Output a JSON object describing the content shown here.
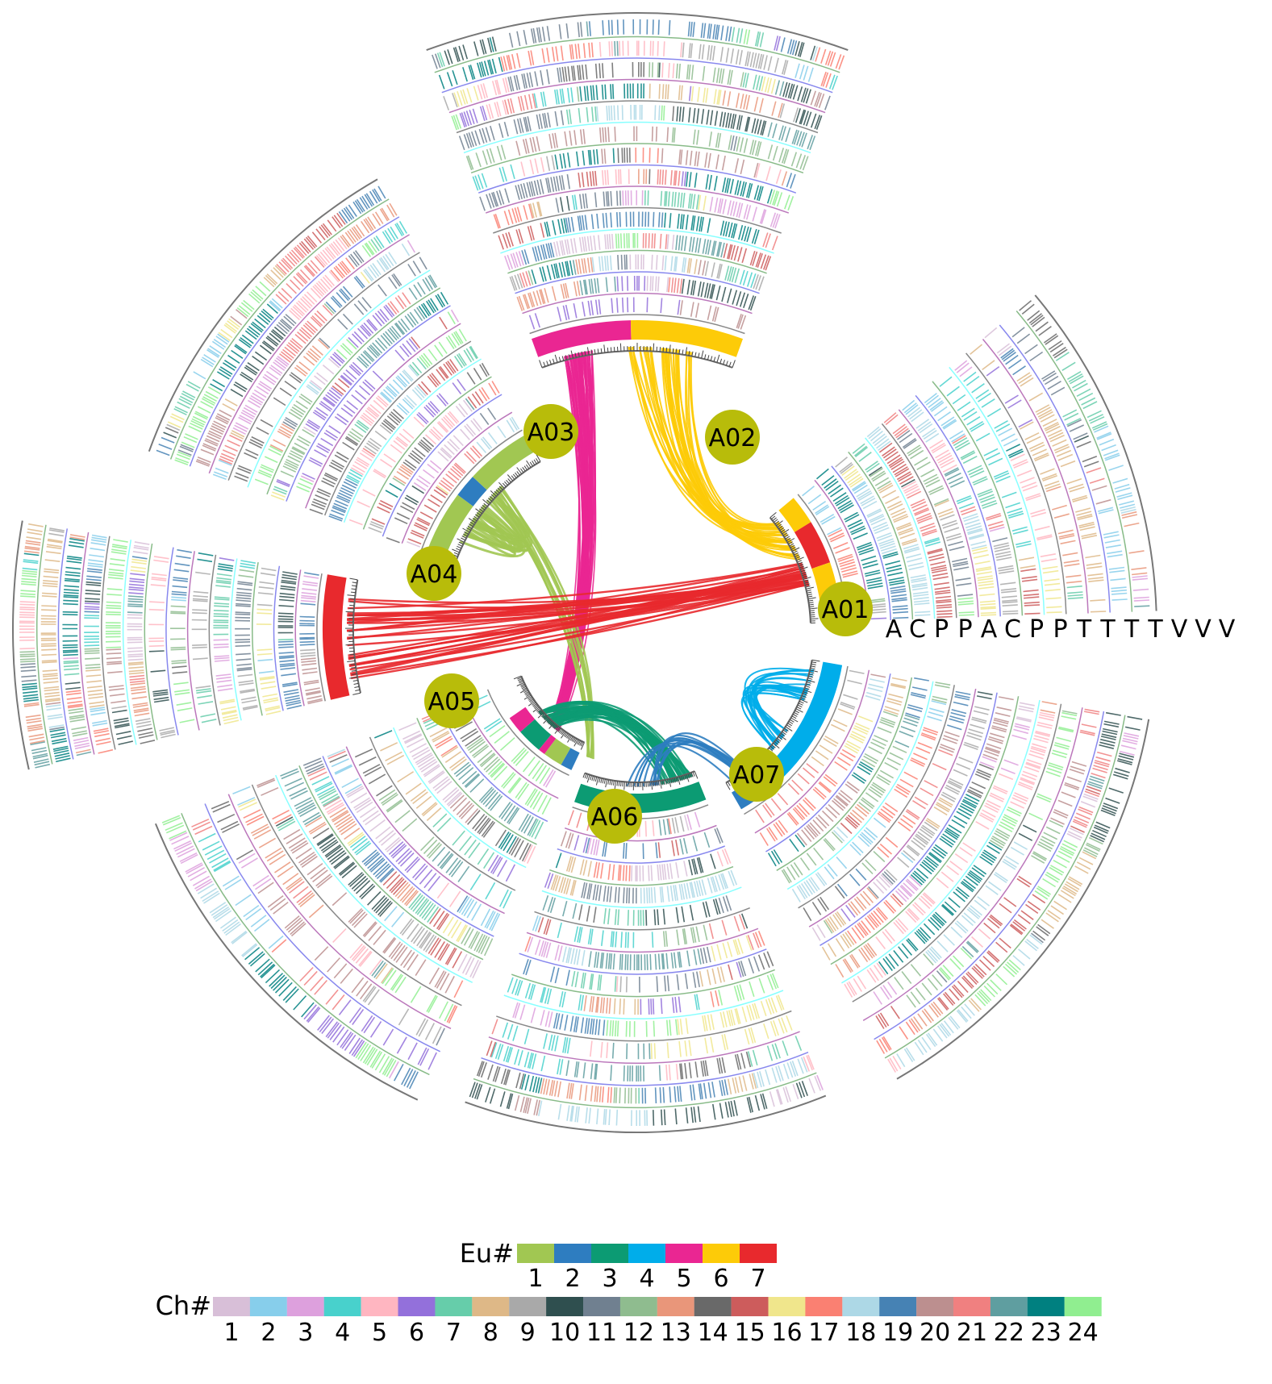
{
  "chromosomes": [
    {
      "label": "A01",
      "color": "#b8bc0a"
    },
    {
      "label": "A02",
      "color": "#b8bc0a"
    },
    {
      "label": "A03",
      "color": "#b8bc0a"
    },
    {
      "label": "A04",
      "color": "#b8bc0a"
    },
    {
      "label": "A05",
      "color": "#b8bc0a"
    },
    {
      "label": "A06",
      "color": "#b8bc0a"
    },
    {
      "label": "A07",
      "color": "#b8bc0a"
    }
  ],
  "track_labels": [
    "A",
    "C",
    "P",
    "P",
    "A",
    "C",
    "P",
    "P",
    "T",
    "T",
    "T",
    "T",
    "V",
    "V",
    "V"
  ],
  "legend_eu": {
    "title": "Eu#",
    "items": [
      {
        "label": "1",
        "color": "#a1c752"
      },
      {
        "label": "2",
        "color": "#2e7dc0"
      },
      {
        "label": "3",
        "color": "#0c9b73"
      },
      {
        "label": "4",
        "color": "#00adea"
      },
      {
        "label": "5",
        "color": "#ea2692"
      },
      {
        "label": "6",
        "color": "#fdcb08"
      },
      {
        "label": "7",
        "color": "#e8292d"
      }
    ]
  },
  "legend_ch": {
    "title": "Ch#",
    "items": [
      {
        "label": "1",
        "color": "#d8bfd8"
      },
      {
        "label": "2",
        "color": "#87ceeb"
      },
      {
        "label": "3",
        "color": "#dda0dd"
      },
      {
        "label": "4",
        "color": "#48d1cc"
      },
      {
        "label": "5",
        "color": "#ffb6c1"
      },
      {
        "label": "6",
        "color": "#9370db"
      },
      {
        "label": "7",
        "color": "#66cdaa"
      },
      {
        "label": "8",
        "color": "#deb887"
      },
      {
        "label": "9",
        "color": "#a9a9a9"
      },
      {
        "label": "10",
        "color": "#2f4f4f"
      },
      {
        "label": "11",
        "color": "#708090"
      },
      {
        "label": "12",
        "color": "#8fbc8f"
      },
      {
        "label": "13",
        "color": "#e9967a"
      },
      {
        "label": "14",
        "color": "#696969"
      },
      {
        "label": "15",
        "color": "#cd5c5c"
      },
      {
        "label": "16",
        "color": "#f0e68c"
      },
      {
        "label": "17",
        "color": "#fa8072"
      },
      {
        "label": "18",
        "color": "#add8e6"
      },
      {
        "label": "19",
        "color": "#4682b4"
      },
      {
        "label": "20",
        "color": "#bc8f8f"
      },
      {
        "label": "21",
        "color": "#f08080"
      },
      {
        "label": "22",
        "color": "#5f9ea0"
      },
      {
        "label": "23",
        "color": "#008080"
      },
      {
        "label": "24",
        "color": "#90ee90"
      }
    ]
  }
}
